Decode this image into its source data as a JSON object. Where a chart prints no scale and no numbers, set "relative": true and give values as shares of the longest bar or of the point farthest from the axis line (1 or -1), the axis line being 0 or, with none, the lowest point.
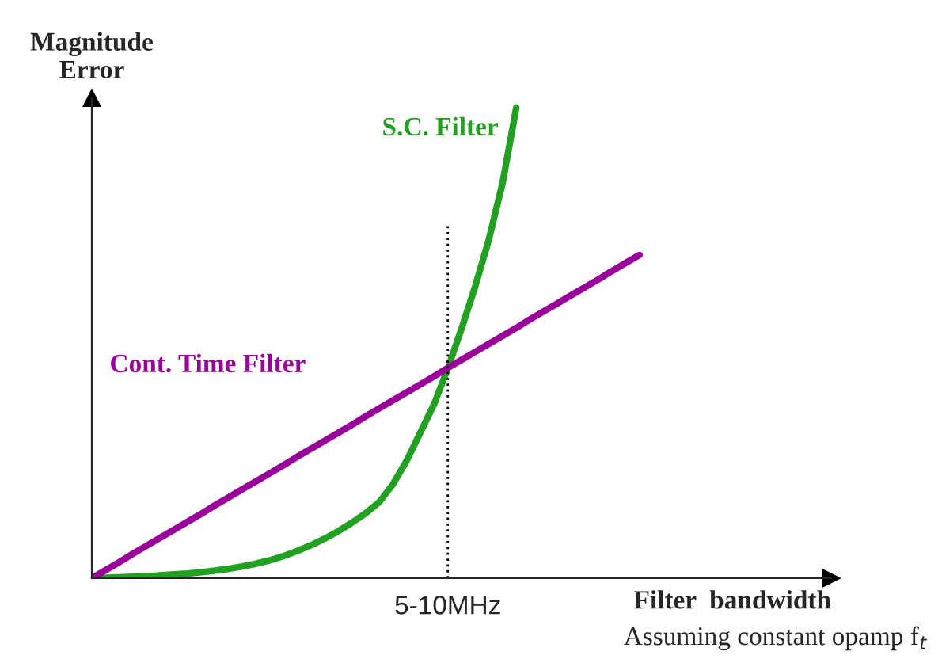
{
  "chart_data": {
    "type": "line",
    "relative": true,
    "ylabel": "Magnitude\nError",
    "xlabel": "Filter  bandwidth",
    "categories": [
      null,
      null,
      null,
      null,
      null,
      null,
      null,
      null,
      null,
      null,
      null,
      null,
      null,
      null,
      null,
      null,
      null,
      null,
      null,
      null,
      null,
      null,
      null,
      null,
      null,
      null,
      null,
      null,
      null,
      null,
      null,
      null,
      null,
      null,
      null,
      null,
      null,
      null,
      null,
      null,
      null,
      null,
      null,
      null,
      null,
      null,
      null,
      null,
      null,
      null,
      null,
      null,
      null,
      null,
      null
    ],
    "series": [
      {
        "name": "S.C. Filter",
        "color": "#22a022",
        "values": [
          0,
          0.001,
          0.002,
          0.003,
          0.004,
          0.006,
          0.008,
          0.01,
          0.013,
          0.016,
          0.02,
          0.025,
          0.031,
          0.038,
          0.047,
          0.058,
          0.07,
          0.084,
          0.1,
          0.118,
          0.138,
          0.162,
          0.2,
          0.25,
          0.31,
          0.37,
          0.446,
          0.53,
          0.62,
          0.72,
          0.84,
          1,
          null,
          null,
          null,
          null,
          null,
          null,
          null,
          null,
          null,
          null,
          null,
          null,
          null,
          null,
          null,
          null,
          null,
          null,
          null,
          null,
          null,
          null,
          null
        ]
      },
      {
        "name": "Cont. Time Filter",
        "color": "#990099",
        "values": [
          0,
          0.017,
          0.034,
          0.052,
          0.069,
          0.086,
          0.103,
          0.12,
          0.137,
          0.155,
          0.172,
          0.189,
          0.206,
          0.223,
          0.24,
          0.258,
          0.275,
          0.292,
          0.309,
          0.326,
          0.344,
          0.361,
          0.378,
          0.395,
          0.412,
          0.429,
          0.447,
          0.464,
          0.481,
          0.498,
          0.515,
          0.532,
          0.55,
          0.567,
          0.584,
          0.601,
          0.618,
          0.635,
          0.653,
          0.67,
          0.687,
          null,
          null,
          null,
          null,
          null,
          null,
          null,
          null,
          null,
          null,
          null,
          null,
          null,
          null
        ]
      }
    ],
    "annotations": [
      "5-10MHz",
      "Assuming constant opamp f$_{t}$"
    ],
    "legend": false
  }
}
